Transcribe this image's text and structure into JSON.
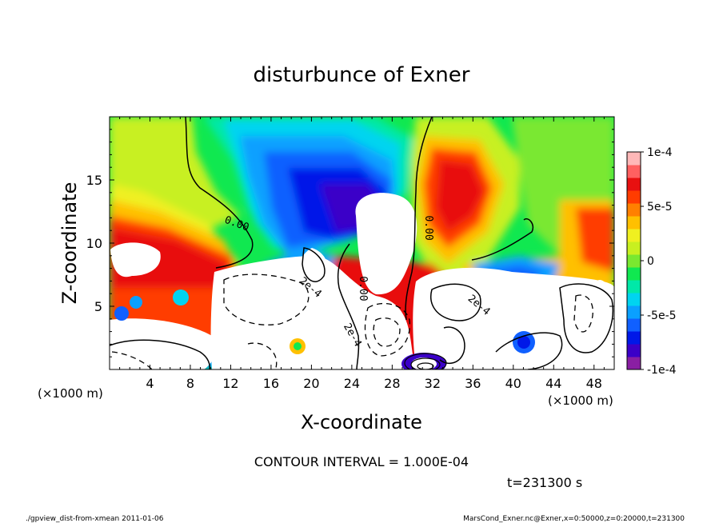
{
  "chart_data": {
    "type": "heatmap",
    "title": "disturbunce of Exner",
    "xlabel": "X-coordinate",
    "ylabel": "Z-coordinate",
    "x_unit": "(×1000 m)",
    "x_unit_right": "(×1000 m)",
    "y_unit": "(×1000 m)",
    "xlim": [
      0,
      50
    ],
    "ylim": [
      0,
      20
    ],
    "x_ticks": [
      {
        "value": 4,
        "label": "4"
      },
      {
        "value": 8,
        "label": "8"
      },
      {
        "value": 12,
        "label": "12"
      },
      {
        "value": 16,
        "label": "16"
      },
      {
        "value": 20,
        "label": "20"
      },
      {
        "value": 24,
        "label": "24"
      },
      {
        "value": 28,
        "label": "28"
      },
      {
        "value": 32,
        "label": "32"
      },
      {
        "value": 36,
        "label": "36"
      },
      {
        "value": 40,
        "label": "40"
      },
      {
        "value": 44,
        "label": "44"
      },
      {
        "value": 48,
        "label": "48"
      }
    ],
    "y_ticks": [
      {
        "value": 5,
        "label": "5"
      },
      {
        "value": 10,
        "label": "10"
      },
      {
        "value": 15,
        "label": "15"
      }
    ],
    "colorbar": {
      "min": -0.0001,
      "max": 0.0001,
      "ticks": [
        {
          "value": 0.0001,
          "label": "1e-4"
        },
        {
          "value": 5e-05,
          "label": "5e-5"
        },
        {
          "value": 0,
          "label": "0"
        },
        {
          "value": -5e-05,
          "label": "-5e-5"
        },
        {
          "value": -0.0001,
          "label": "-1e-4"
        }
      ],
      "colors": [
        "#8a1fa3",
        "#3b00c8",
        "#0018e8",
        "#1060ff",
        "#0aa0ff",
        "#00d4f0",
        "#00e8a8",
        "#10e850",
        "#7ae830",
        "#c8f020",
        "#f0f020",
        "#ffc000",
        "#ff8000",
        "#ff3c00",
        "#e81010",
        "#ff6060",
        "#ffb8b8"
      ]
    },
    "contour_interval_text": "CONTOUR INTERVAL = 1.000E-04",
    "contour_labels": [
      {
        "text": "0.00",
        "x": 12.5,
        "y": 11.3
      },
      {
        "text": "0.00",
        "x": 31.3,
        "y": 11.2
      },
      {
        "text": "0.00",
        "x": 24.8,
        "y": 6.4
      },
      {
        "text": "2e-4",
        "x": 19.7,
        "y": 6.3
      },
      {
        "text": "2e-4",
        "x": 23.8,
        "y": 2.6
      },
      {
        "text": "2e-4",
        "x": 36.4,
        "y": 4.9
      }
    ],
    "time_label": "t=231300 s",
    "grid": false
  },
  "footer": {
    "left": "./gpview_dist-from-xmean  2011-01-06",
    "right": "MarsCond_Exner.nc@Exner,x=0:50000,z=0:20000,t=231300"
  }
}
